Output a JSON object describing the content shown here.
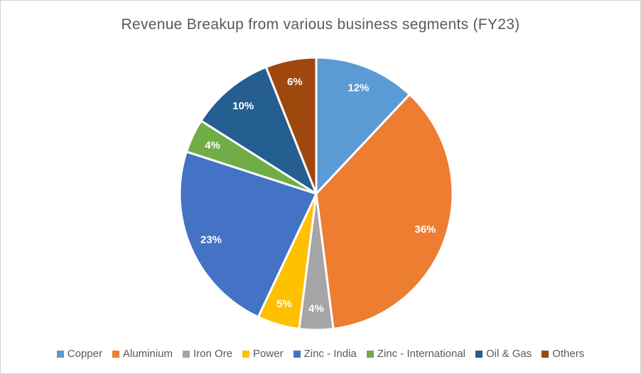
{
  "chart_data": {
    "type": "pie",
    "title": "Revenue Breakup from various business segments (FY23)",
    "unit": "%",
    "direction": "clockwise",
    "start_angle_deg": 0,
    "legend_position": "bottom",
    "data_label_style": "inside, bold, white, percent",
    "segments": [
      {
        "label": "Copper",
        "value": 12,
        "data_label": "12%",
        "color": "#5B9BD5"
      },
      {
        "label": "Aluminium",
        "value": 36,
        "data_label": "36%",
        "color": "#ED7D31"
      },
      {
        "label": "Iron Ore",
        "value": 4,
        "data_label": "4%",
        "color": "#A5A5A5"
      },
      {
        "label": "Power",
        "value": 5,
        "data_label": "5%",
        "color": "#FFC000"
      },
      {
        "label": "Zinc - India",
        "value": 23,
        "data_label": "23%",
        "color": "#4472C4"
      },
      {
        "label": "Zinc - International",
        "value": 4,
        "data_label": "4%",
        "color": "#70AD47"
      },
      {
        "label": "Oil & Gas",
        "value": 10,
        "data_label": "10%",
        "color": "#255E91"
      },
      {
        "label": "Others",
        "value": 6,
        "data_label": "6%",
        "color": "#9E480E"
      }
    ]
  },
  "style": {
    "title_color": "#595959",
    "legend_text_color": "#595959",
    "data_label_color": "#FFFFFF",
    "slice_border_color": "#FFFFFF",
    "frame_border_color": "#D1D1D1",
    "background": "#FFFFFF"
  }
}
